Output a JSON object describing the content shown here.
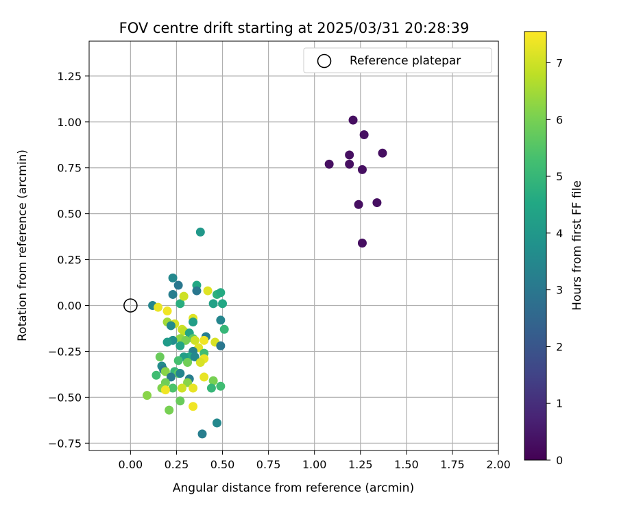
{
  "chart_data": {
    "type": "scatter",
    "title": "FOV centre drift starting at 2025/03/31 20:28:39",
    "xlabel": "Angular distance from reference (arcmin)",
    "ylabel": "Rotation from reference (arcmin)",
    "xlim": [
      -0.225,
      2.0
    ],
    "ylim": [
      -0.79,
      1.44
    ],
    "xticks": [
      "0.00",
      "0.25",
      "0.50",
      "0.75",
      "1.00",
      "1.25",
      "1.50",
      "1.75",
      "2.00"
    ],
    "yticks": [
      "−0.75",
      "−0.50",
      "−0.25",
      "0.00",
      "0.25",
      "0.50",
      "0.75",
      "1.00",
      "1.25"
    ],
    "grid": true,
    "legend": {
      "placement": "top-right",
      "entries": [
        "Reference platepar"
      ]
    },
    "reference_point": {
      "x": 0.0,
      "y": 0.0
    },
    "colorbar": {
      "label": "Hours from first FF file",
      "min": 0,
      "max": 7.55,
      "ticks": [
        "0",
        "1",
        "2",
        "3",
        "4",
        "5",
        "6",
        "7"
      ],
      "colormap": "viridis"
    },
    "points": [
      {
        "x": 1.21,
        "y": 1.01,
        "h": 0.3
      },
      {
        "x": 1.27,
        "y": 0.93,
        "h": 0.3
      },
      {
        "x": 1.19,
        "y": 0.82,
        "h": 0.3
      },
      {
        "x": 1.37,
        "y": 0.83,
        "h": 0.3
      },
      {
        "x": 1.08,
        "y": 0.77,
        "h": 0.3
      },
      {
        "x": 1.19,
        "y": 0.77,
        "h": 0.3
      },
      {
        "x": 1.26,
        "y": 0.74,
        "h": 0.3
      },
      {
        "x": 1.34,
        "y": 0.56,
        "h": 0.3
      },
      {
        "x": 1.24,
        "y": 0.55,
        "h": 0.3
      },
      {
        "x": 1.26,
        "y": 0.34,
        "h": 0.3
      },
      {
        "x": 0.38,
        "y": 0.4,
        "h": 4.0
      },
      {
        "x": 0.23,
        "y": 0.15,
        "h": 3.5
      },
      {
        "x": 0.26,
        "y": 0.11,
        "h": 3.0
      },
      {
        "x": 0.36,
        "y": 0.11,
        "h": 4.5
      },
      {
        "x": 0.36,
        "y": 0.08,
        "h": 3.0
      },
      {
        "x": 0.23,
        "y": 0.06,
        "h": 3.2
      },
      {
        "x": 0.47,
        "y": 0.06,
        "h": 4.8
      },
      {
        "x": 0.49,
        "y": 0.07,
        "h": 4.6
      },
      {
        "x": 0.12,
        "y": 0.0,
        "h": 3.4
      },
      {
        "x": 0.27,
        "y": 0.01,
        "h": 4.7
      },
      {
        "x": 0.45,
        "y": 0.01,
        "h": 4.3
      },
      {
        "x": 0.5,
        "y": 0.01,
        "h": 4.5
      },
      {
        "x": 0.42,
        "y": 0.08,
        "h": 7.2
      },
      {
        "x": 0.29,
        "y": 0.05,
        "h": 7.0
      },
      {
        "x": 0.15,
        "y": -0.01,
        "h": 7.3
      },
      {
        "x": 0.2,
        "y": -0.03,
        "h": 7.4
      },
      {
        "x": 0.2,
        "y": -0.09,
        "h": 6.5
      },
      {
        "x": 0.24,
        "y": -0.1,
        "h": 7.1
      },
      {
        "x": 0.22,
        "y": -0.11,
        "h": 3.6
      },
      {
        "x": 0.34,
        "y": -0.07,
        "h": 7.2
      },
      {
        "x": 0.34,
        "y": -0.09,
        "h": 4.2
      },
      {
        "x": 0.49,
        "y": -0.08,
        "h": 3.4
      },
      {
        "x": 0.51,
        "y": -0.13,
        "h": 5.0
      },
      {
        "x": 0.28,
        "y": -0.13,
        "h": 7.0
      },
      {
        "x": 0.29,
        "y": -0.14,
        "h": 6.8
      },
      {
        "x": 0.32,
        "y": -0.15,
        "h": 4.4
      },
      {
        "x": 0.41,
        "y": -0.17,
        "h": 3.2
      },
      {
        "x": 0.4,
        "y": -0.19,
        "h": 7.4
      },
      {
        "x": 0.34,
        "y": -0.18,
        "h": 5.6
      },
      {
        "x": 0.35,
        "y": -0.19,
        "h": 7.0
      },
      {
        "x": 0.27,
        "y": -0.18,
        "h": 6.3
      },
      {
        "x": 0.3,
        "y": -0.19,
        "h": 6.0
      },
      {
        "x": 0.23,
        "y": -0.19,
        "h": 3.7
      },
      {
        "x": 0.2,
        "y": -0.2,
        "h": 4.1
      },
      {
        "x": 0.46,
        "y": -0.2,
        "h": 7.1
      },
      {
        "x": 0.49,
        "y": -0.22,
        "h": 3.0
      },
      {
        "x": 0.27,
        "y": -0.22,
        "h": 4.4
      },
      {
        "x": 0.37,
        "y": -0.23,
        "h": 7.2
      },
      {
        "x": 0.4,
        "y": -0.26,
        "h": 5.2
      },
      {
        "x": 0.34,
        "y": -0.25,
        "h": 3.3
      },
      {
        "x": 0.32,
        "y": -0.28,
        "h": 4.6
      },
      {
        "x": 0.29,
        "y": -0.28,
        "h": 4.2
      },
      {
        "x": 0.35,
        "y": -0.28,
        "h": 3.5
      },
      {
        "x": 0.4,
        "y": -0.29,
        "h": 7.3
      },
      {
        "x": 0.38,
        "y": -0.31,
        "h": 7.1
      },
      {
        "x": 0.16,
        "y": -0.28,
        "h": 5.8
      },
      {
        "x": 0.26,
        "y": -0.3,
        "h": 5.3
      },
      {
        "x": 0.31,
        "y": -0.31,
        "h": 5.9
      },
      {
        "x": 0.17,
        "y": -0.33,
        "h": 3.6
      },
      {
        "x": 0.18,
        "y": -0.35,
        "h": 3.0
      },
      {
        "x": 0.19,
        "y": -0.36,
        "h": 6.2
      },
      {
        "x": 0.24,
        "y": -0.36,
        "h": 5.0
      },
      {
        "x": 0.26,
        "y": -0.37,
        "h": 5.6
      },
      {
        "x": 0.27,
        "y": -0.37,
        "h": 3.4
      },
      {
        "x": 0.22,
        "y": -0.39,
        "h": 3.1
      },
      {
        "x": 0.14,
        "y": -0.38,
        "h": 5.2
      },
      {
        "x": 0.32,
        "y": -0.4,
        "h": 3.2
      },
      {
        "x": 0.4,
        "y": -0.39,
        "h": 7.3
      },
      {
        "x": 0.19,
        "y": -0.42,
        "h": 5.9
      },
      {
        "x": 0.31,
        "y": -0.42,
        "h": 6.2
      },
      {
        "x": 0.45,
        "y": -0.41,
        "h": 6.0
      },
      {
        "x": 0.44,
        "y": -0.45,
        "h": 5.0
      },
      {
        "x": 0.49,
        "y": -0.44,
        "h": 5.2
      },
      {
        "x": 0.17,
        "y": -0.45,
        "h": 6.1
      },
      {
        "x": 0.23,
        "y": -0.45,
        "h": 5.4
      },
      {
        "x": 0.28,
        "y": -0.45,
        "h": 7.0
      },
      {
        "x": 0.34,
        "y": -0.45,
        "h": 7.3
      },
      {
        "x": 0.19,
        "y": -0.46,
        "h": 7.4
      },
      {
        "x": 0.09,
        "y": -0.49,
        "h": 6.2
      },
      {
        "x": 0.27,
        "y": -0.52,
        "h": 5.8
      },
      {
        "x": 0.34,
        "y": -0.55,
        "h": 7.4
      },
      {
        "x": 0.21,
        "y": -0.57,
        "h": 6.0
      },
      {
        "x": 0.47,
        "y": -0.64,
        "h": 3.5
      },
      {
        "x": 0.39,
        "y": -0.7,
        "h": 3.2
      }
    ]
  }
}
